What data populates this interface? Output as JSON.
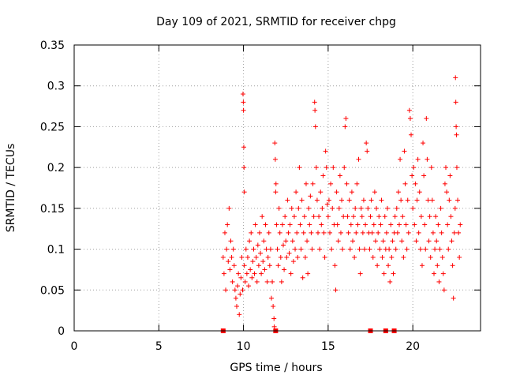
{
  "chart_data": {
    "type": "scatter",
    "title": "Day 109 of 2021, SRMTID for receiver chpg",
    "xlabel": "GPS time / hours",
    "ylabel": "SRMTID / TECUs",
    "xlim": [
      0,
      24
    ],
    "ylim": [
      0,
      0.35
    ],
    "xticks": [
      0,
      5,
      10,
      15,
      20
    ],
    "xtick_labels": [
      "0",
      "5",
      "10",
      "15",
      "20"
    ],
    "yticks": [
      0,
      0.05,
      0.1,
      0.15,
      0.2,
      0.25,
      0.3,
      0.35
    ],
    "ytick_labels": [
      "0",
      "0.05",
      "0.1",
      "0.15",
      "0.2",
      "0.25",
      "0.3",
      "0.35"
    ],
    "grid": true,
    "marker": "+",
    "series": [
      {
        "name": "SRMTID",
        "color": "#ff0000",
        "points": [
          [
            8.8,
            0.09
          ],
          [
            8.85,
            0.07
          ],
          [
            8.9,
            0.12
          ],
          [
            8.95,
            0.05
          ],
          [
            9.0,
            0.1
          ],
          [
            9.05,
            0.13
          ],
          [
            9.1,
            0.085
          ],
          [
            9.15,
            0.15
          ],
          [
            9.2,
            0.075
          ],
          [
            9.25,
            0.11
          ],
          [
            9.3,
            0.09
          ],
          [
            9.35,
            0.06
          ],
          [
            9.4,
            0.1
          ],
          [
            9.45,
            0.08
          ],
          [
            9.5,
            0.05
          ],
          [
            9.55,
            0.04
          ],
          [
            9.6,
            0.03
          ],
          [
            9.65,
            0.055
          ],
          [
            9.7,
            0.07
          ],
          [
            9.75,
            0.02
          ],
          [
            9.8,
            0.045
          ],
          [
            9.85,
            0.065
          ],
          [
            9.9,
            0.09
          ],
          [
            9.95,
            0.05
          ],
          [
            9.97,
            0.29
          ],
          [
            9.99,
            0.28
          ],
          [
            10.0,
            0.27
          ],
          [
            10.02,
            0.225
          ],
          [
            10.03,
            0.2
          ],
          [
            10.05,
            0.17
          ],
          [
            10.05,
            0.08
          ],
          [
            10.1,
            0.06
          ],
          [
            10.15,
            0.1
          ],
          [
            10.2,
            0.07
          ],
          [
            10.25,
            0.09
          ],
          [
            10.3,
            0.055
          ],
          [
            10.35,
            0.11
          ],
          [
            10.4,
            0.075
          ],
          [
            10.45,
            0.12
          ],
          [
            10.5,
            0.065
          ],
          [
            10.55,
            0.085
          ],
          [
            10.6,
            0.1
          ],
          [
            10.65,
            0.07
          ],
          [
            10.7,
            0.13
          ],
          [
            10.75,
            0.09
          ],
          [
            10.8,
            0.06
          ],
          [
            10.85,
            0.105
          ],
          [
            10.9,
            0.08
          ],
          [
            10.95,
            0.12
          ],
          [
            11.0,
            0.095
          ],
          [
            11.05,
            0.07
          ],
          [
            11.1,
            0.14
          ],
          [
            11.15,
            0.085
          ],
          [
            11.2,
            0.11
          ],
          [
            11.25,
            0.075
          ],
          [
            11.3,
            0.13
          ],
          [
            11.35,
            0.1
          ],
          [
            11.4,
            0.06
          ],
          [
            11.45,
            0.09
          ],
          [
            11.5,
            0.12
          ],
          [
            11.55,
            0.08
          ],
          [
            11.6,
            0.1
          ],
          [
            11.65,
            0.04
          ],
          [
            11.7,
            0.06
          ],
          [
            11.75,
            0.03
          ],
          [
            11.8,
            0.015
          ],
          [
            11.82,
            0.005
          ],
          [
            11.85,
            0.23
          ],
          [
            11.88,
            0.21
          ],
          [
            11.9,
            0.17
          ],
          [
            11.92,
            0.18
          ],
          [
            11.95,
            0.13
          ],
          [
            12.0,
            0.1
          ],
          [
            12.05,
            0.08
          ],
          [
            12.1,
            0.15
          ],
          [
            12.15,
            0.12
          ],
          [
            12.2,
            0.09
          ],
          [
            12.25,
            0.06
          ],
          [
            12.3,
            0.13
          ],
          [
            12.35,
            0.105
          ],
          [
            12.4,
            0.075
          ],
          [
            12.45,
            0.14
          ],
          [
            12.5,
            0.11
          ],
          [
            12.55,
            0.09
          ],
          [
            12.6,
            0.16
          ],
          [
            12.65,
            0.12
          ],
          [
            12.7,
            0.095
          ],
          [
            12.75,
            0.13
          ],
          [
            12.8,
            0.07
          ],
          [
            12.85,
            0.15
          ],
          [
            12.9,
            0.11
          ],
          [
            12.95,
            0.085
          ],
          [
            13.0,
            0.14
          ],
          [
            13.05,
            0.1
          ],
          [
            13.1,
            0.17
          ],
          [
            13.15,
            0.12
          ],
          [
            13.2,
            0.09
          ],
          [
            13.25,
            0.15
          ],
          [
            13.3,
            0.2
          ],
          [
            13.35,
            0.13
          ],
          [
            13.4,
            0.1
          ],
          [
            13.45,
            0.16
          ],
          [
            13.5,
            0.065
          ],
          [
            13.55,
            0.12
          ],
          [
            13.6,
            0.14
          ],
          [
            13.65,
            0.09
          ],
          [
            13.7,
            0.18
          ],
          [
            13.75,
            0.11
          ],
          [
            13.8,
            0.07
          ],
          [
            13.85,
            0.15
          ],
          [
            13.9,
            0.13
          ],
          [
            13.95,
            0.165
          ],
          [
            14.0,
            0.12
          ],
          [
            14.05,
            0.1
          ],
          [
            14.1,
            0.18
          ],
          [
            14.15,
            0.14
          ],
          [
            14.2,
            0.28
          ],
          [
            14.22,
            0.27
          ],
          [
            14.25,
            0.25
          ],
          [
            14.3,
            0.2
          ],
          [
            14.35,
            0.16
          ],
          [
            14.4,
            0.12
          ],
          [
            14.45,
            0.14
          ],
          [
            14.5,
            0.1
          ],
          [
            14.55,
            0.17
          ],
          [
            14.6,
            0.13
          ],
          [
            14.65,
            0.15
          ],
          [
            14.7,
            0.19
          ],
          [
            14.75,
            0.12
          ],
          [
            14.8,
            0.09
          ],
          [
            14.85,
            0.22
          ],
          [
            14.9,
            0.2
          ],
          [
            14.95,
            0.155
          ],
          [
            15.0,
            0.14
          ],
          [
            15.05,
            0.16
          ],
          [
            15.1,
            0.12
          ],
          [
            15.15,
            0.18
          ],
          [
            15.2,
            0.1
          ],
          [
            15.25,
            0.15
          ],
          [
            15.3,
            0.2
          ],
          [
            15.35,
            0.13
          ],
          [
            15.4,
            0.08
          ],
          [
            15.45,
            0.05
          ],
          [
            15.5,
            0.17
          ],
          [
            15.55,
            0.13
          ],
          [
            15.6,
            0.11
          ],
          [
            15.65,
            0.15
          ],
          [
            15.7,
            0.19
          ],
          [
            15.75,
            0.12
          ],
          [
            15.8,
            0.16
          ],
          [
            15.85,
            0.1
          ],
          [
            15.9,
            0.14
          ],
          [
            15.95,
            0.2
          ],
          [
            16.0,
            0.25
          ],
          [
            16.05,
            0.26
          ],
          [
            16.1,
            0.18
          ],
          [
            16.15,
            0.14
          ],
          [
            16.2,
            0.12
          ],
          [
            16.25,
            0.16
          ],
          [
            16.3,
            0.1
          ],
          [
            16.35,
            0.13
          ],
          [
            16.4,
            0.17
          ],
          [
            16.45,
            0.11
          ],
          [
            16.5,
            0.14
          ],
          [
            16.55,
            0.09
          ],
          [
            16.6,
            0.15
          ],
          [
            16.65,
            0.12
          ],
          [
            16.7,
            0.18
          ],
          [
            16.75,
            0.13
          ],
          [
            16.8,
            0.21
          ],
          [
            16.85,
            0.1
          ],
          [
            16.9,
            0.07
          ],
          [
            16.95,
            0.15
          ],
          [
            17.0,
            0.14
          ],
          [
            17.05,
            0.12
          ],
          [
            17.1,
            0.16
          ],
          [
            17.15,
            0.1
          ],
          [
            17.2,
            0.13
          ],
          [
            17.25,
            0.23
          ],
          [
            17.3,
            0.22
          ],
          [
            17.35,
            0.15
          ],
          [
            17.4,
            0.12
          ],
          [
            17.45,
            0.1
          ],
          [
            17.5,
            0.14
          ],
          [
            17.55,
            0.16
          ],
          [
            17.6,
            0.12
          ],
          [
            17.65,
            0.09
          ],
          [
            17.7,
            0.13
          ],
          [
            17.75,
            0.17
          ],
          [
            17.8,
            0.11
          ],
          [
            17.85,
            0.15
          ],
          [
            17.9,
            0.08
          ],
          [
            17.95,
            0.12
          ],
          [
            18.0,
            0.14
          ],
          [
            18.05,
            0.1
          ],
          [
            18.1,
            0.13
          ],
          [
            18.15,
            0.16
          ],
          [
            18.2,
            0.09
          ],
          [
            18.25,
            0.11
          ],
          [
            18.3,
            0.07
          ],
          [
            18.35,
            0.14
          ],
          [
            18.4,
            0.1
          ],
          [
            18.45,
            0.12
          ],
          [
            18.5,
            0.15
          ],
          [
            18.55,
            0.08
          ],
          [
            18.6,
            0.1
          ],
          [
            18.65,
            0.06
          ],
          [
            18.7,
            0.13
          ],
          [
            18.75,
            0.09
          ],
          [
            18.8,
            0.11
          ],
          [
            18.85,
            0.07
          ],
          [
            18.9,
            0.12
          ],
          [
            18.95,
            0.14
          ],
          [
            19.0,
            0.1
          ],
          [
            19.05,
            0.15
          ],
          [
            19.1,
            0.12
          ],
          [
            19.15,
            0.17
          ],
          [
            19.2,
            0.13
          ],
          [
            19.25,
            0.21
          ],
          [
            19.3,
            0.16
          ],
          [
            19.35,
            0.11
          ],
          [
            19.4,
            0.14
          ],
          [
            19.45,
            0.09
          ],
          [
            19.5,
            0.22
          ],
          [
            19.55,
            0.18
          ],
          [
            19.6,
            0.13
          ],
          [
            19.65,
            0.1
          ],
          [
            19.7,
            0.16
          ],
          [
            19.75,
            0.12
          ],
          [
            19.8,
            0.27
          ],
          [
            19.85,
            0.26
          ],
          [
            19.9,
            0.24
          ],
          [
            19.95,
            0.19
          ],
          [
            20.0,
            0.15
          ],
          [
            20.05,
            0.2
          ],
          [
            20.1,
            0.13
          ],
          [
            20.15,
            0.18
          ],
          [
            20.2,
            0.11
          ],
          [
            20.25,
            0.16
          ],
          [
            20.3,
            0.21
          ],
          [
            20.35,
            0.12
          ],
          [
            20.4,
            0.17
          ],
          [
            20.45,
            0.1
          ],
          [
            20.5,
            0.14
          ],
          [
            20.55,
            0.08
          ],
          [
            20.6,
            0.23
          ],
          [
            20.65,
            0.19
          ],
          [
            20.7,
            0.13
          ],
          [
            20.75,
            0.1
          ],
          [
            20.8,
            0.26
          ],
          [
            20.85,
            0.21
          ],
          [
            20.9,
            0.16
          ],
          [
            20.95,
            0.11
          ],
          [
            21.0,
            0.14
          ],
          [
            21.05,
            0.09
          ],
          [
            21.1,
            0.2
          ],
          [
            21.15,
            0.16
          ],
          [
            21.2,
            0.12
          ],
          [
            21.25,
            0.07
          ],
          [
            21.3,
            0.1
          ],
          [
            21.35,
            0.14
          ],
          [
            21.4,
            0.11
          ],
          [
            21.45,
            0.08
          ],
          [
            21.5,
            0.13
          ],
          [
            21.55,
            0.06
          ],
          [
            21.6,
            0.1
          ],
          [
            21.65,
            0.15
          ],
          [
            21.7,
            0.12
          ],
          [
            21.75,
            0.09
          ],
          [
            21.8,
            0.07
          ],
          [
            21.85,
            0.05
          ],
          [
            21.9,
            0.18
          ],
          [
            21.95,
            0.2
          ],
          [
            22.0,
            0.17
          ],
          [
            22.05,
            0.13
          ],
          [
            22.1,
            0.1
          ],
          [
            22.15,
            0.16
          ],
          [
            22.2,
            0.19
          ],
          [
            22.25,
            0.14
          ],
          [
            22.3,
            0.11
          ],
          [
            22.35,
            0.08
          ],
          [
            22.4,
            0.04
          ],
          [
            22.45,
            0.12
          ],
          [
            22.5,
            0.15
          ],
          [
            22.52,
            0.31
          ],
          [
            22.54,
            0.28
          ],
          [
            22.56,
            0.25
          ],
          [
            22.58,
            0.24
          ],
          [
            22.6,
            0.2
          ],
          [
            22.65,
            0.16
          ],
          [
            22.7,
            0.12
          ],
          [
            22.75,
            0.09
          ],
          [
            22.8,
            0.13
          ]
        ]
      }
    ],
    "zero_markers_x": [
      8.8,
      11.9,
      17.5,
      18.4,
      18.9
    ]
  }
}
